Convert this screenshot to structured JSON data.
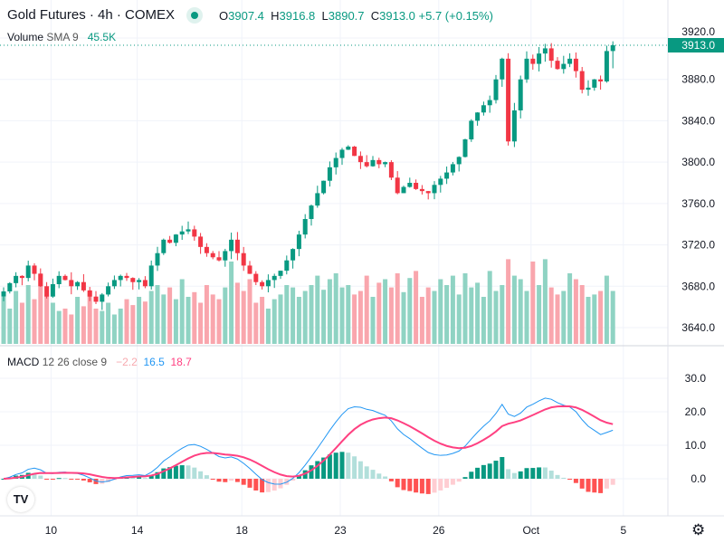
{
  "header": {
    "title": "Gold Futures · 4h · COMEX",
    "status_color": "#089981",
    "open_label": "O",
    "open": "3907.4",
    "high_label": "H",
    "high": "3916.8",
    "low_label": "L",
    "low": "3890.7",
    "close_label": "C",
    "close": "3913.0",
    "change": "+5.7 (+0.15%)"
  },
  "volume_legend": {
    "name": "Volume",
    "params": "SMA 9",
    "value": "45.5K"
  },
  "macd_legend": {
    "name": "MACD",
    "params": "12 26 close 9",
    "hist": "−2.2",
    "macd": "16.5",
    "signal": "18.7"
  },
  "colors": {
    "up": "#089981",
    "down": "#f23645",
    "macd": "#2196f3",
    "signal": "#ff4081"
  },
  "chart_data": {
    "type": "candlestick",
    "price_ticks": [
      "3920.0",
      "3880.0",
      "3840.0",
      "3800.0",
      "3760.0",
      "3720.0",
      "3680.0",
      "3640.0"
    ],
    "price_range": [
      3630,
      3930
    ],
    "macd_ticks": [
      "30.0",
      "20.0",
      "10.0",
      "0.0"
    ],
    "macd_range": [
      -12,
      33
    ],
    "x_ticks": [
      {
        "label": "10",
        "bar": 8
      },
      {
        "label": "14",
        "bar": 22
      },
      {
        "label": "18",
        "bar": 39
      },
      {
        "label": "23",
        "bar": 55
      },
      {
        "label": "26",
        "bar": 71
      },
      {
        "label": "Oct",
        "bar": 86
      },
      {
        "label": "5",
        "bar": 101
      }
    ],
    "last_price": "3913.0",
    "last": {
      "open": 3907.4,
      "high": 3916.8,
      "low": 3890.7,
      "close": 3913.0
    },
    "closes": [
      3675,
      3683,
      3690,
      3688,
      3700,
      3692,
      3680,
      3670,
      3682,
      3690,
      3686,
      3680,
      3684,
      3676,
      3670,
      3665,
      3672,
      3680,
      3686,
      3690,
      3688,
      3684,
      3686,
      3680,
      3700,
      3712,
      3725,
      3722,
      3730,
      3733,
      3735,
      3728,
      3718,
      3712,
      3708,
      3705,
      3714,
      3725,
      3712,
      3700,
      3692,
      3684,
      3680,
      3686,
      3690,
      3695,
      3705,
      3716,
      3730,
      3745,
      3758,
      3770,
      3782,
      3795,
      3804,
      3812,
      3815,
      3806,
      3800,
      3796,
      3802,
      3798,
      3800,
      3785,
      3770,
      3776,
      3780,
      3774,
      3772,
      3770,
      3778,
      3784,
      3790,
      3798,
      3805,
      3822,
      3840,
      3848,
      3855,
      3860,
      3880,
      3900,
      3820,
      3850,
      3880,
      3900,
      3895,
      3905,
      3910,
      3898,
      3890,
      3895,
      3900,
      3888,
      3870,
      3872,
      3880,
      3878,
      3907.4,
      3913.0
    ],
    "volumes": [
      40,
      30,
      45,
      35,
      50,
      38,
      60,
      42,
      35,
      28,
      30,
      25,
      40,
      32,
      45,
      30,
      28,
      35,
      25,
      30,
      38,
      33,
      40,
      36,
      45,
      50,
      42,
      48,
      38,
      55,
      40,
      44,
      35,
      50,
      42,
      38,
      48,
      70,
      52,
      45,
      55,
      35,
      40,
      30,
      38,
      42,
      50,
      48,
      40,
      45,
      50,
      58,
      46,
      55,
      60,
      48,
      50,
      42,
      45,
      58,
      40,
      52,
      55,
      48,
      60,
      44,
      56,
      62,
      40,
      48,
      45,
      55,
      50,
      58,
      42,
      60,
      48,
      52,
      40,
      62,
      45,
      50,
      72,
      58,
      55,
      45,
      70,
      50,
      72,
      48,
      42,
      45,
      60,
      55,
      50,
      40,
      42,
      45,
      58,
      45
    ]
  }
}
